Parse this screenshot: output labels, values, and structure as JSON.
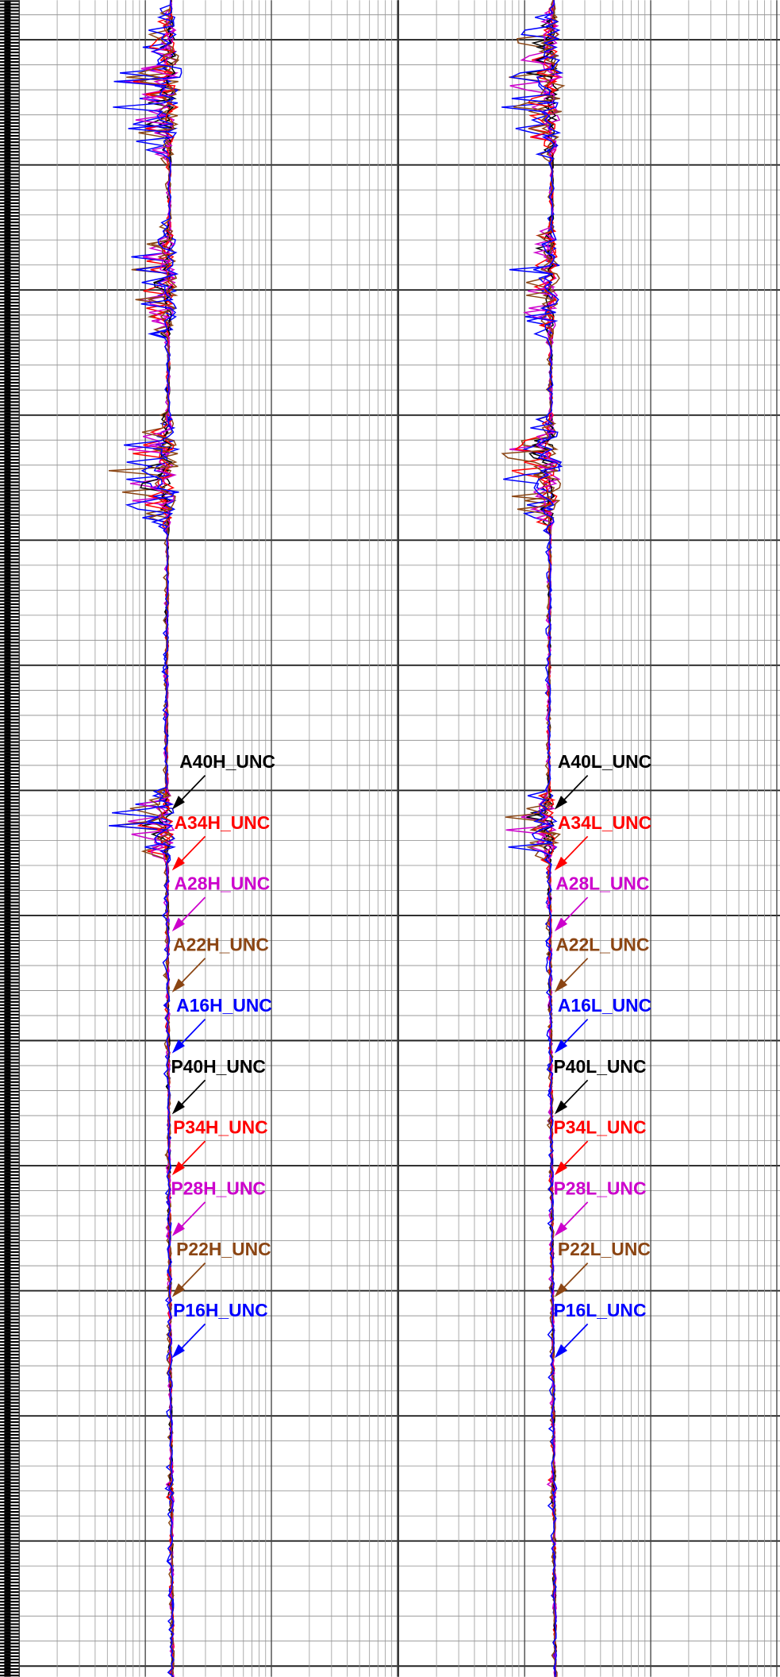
{
  "tracks": [
    {
      "labels": [
        {
          "text": "A40H_UNC",
          "color": "#000000"
        },
        {
          "text": "A34H_UNC",
          "color": "#ff0000"
        },
        {
          "text": "A28H_UNC",
          "color": "#cc00cc"
        },
        {
          "text": "A22H_UNC",
          "color": "#8b4513"
        },
        {
          "text": "A16H_UNC",
          "color": "#0000ff"
        },
        {
          "text": "P40H_UNC",
          "color": "#000000"
        },
        {
          "text": "P34H_UNC",
          "color": "#ff0000"
        },
        {
          "text": "P28H_UNC",
          "color": "#cc00cc"
        },
        {
          "text": "P22H_UNC",
          "color": "#8b4513"
        },
        {
          "text": "P16H_UNC",
          "color": "#0000ff"
        }
      ]
    },
    {
      "labels": [
        {
          "text": "A40L_UNC",
          "color": "#000000"
        },
        {
          "text": "A34L_UNC",
          "color": "#ff0000"
        },
        {
          "text": "A28L_UNC",
          "color": "#cc00cc"
        },
        {
          "text": "A22L_UNC",
          "color": "#8b4513"
        },
        {
          "text": "A16L_UNC",
          "color": "#0000ff"
        },
        {
          "text": "P40L_UNC",
          "color": "#000000"
        },
        {
          "text": "P34L_UNC",
          "color": "#ff0000"
        },
        {
          "text": "P28L_UNC",
          "color": "#cc00cc"
        },
        {
          "text": "P22L_UNC",
          "color": "#8b4513"
        },
        {
          "text": "P16L_UNC",
          "color": "#0000ff"
        }
      ]
    }
  ]
}
